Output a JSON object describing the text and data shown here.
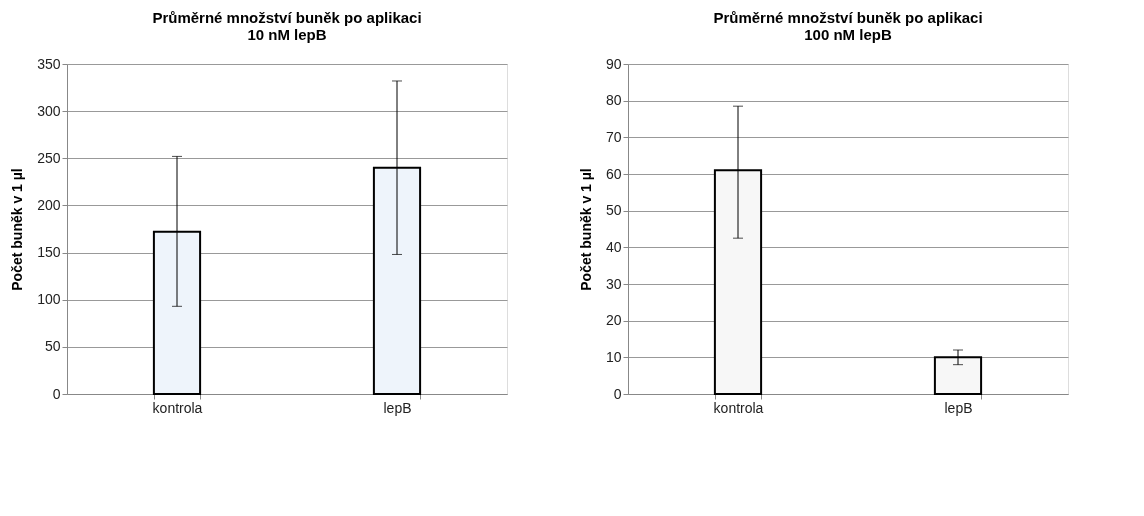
{
  "chart_data": [
    {
      "type": "bar",
      "title": "Průměrné množství buněk po aplikaci\n10 nM lepB",
      "ylabel": "Počet buněk v 1 µl",
      "categories": [
        "kontrola",
        "lepB"
      ],
      "values": [
        172,
        240
      ],
      "errors": [
        [
          93,
          252
        ],
        [
          148,
          332
        ]
      ],
      "color": "#eef4fb",
      "ylim": [
        0,
        350
      ],
      "yticks": [
        0,
        50,
        100,
        150,
        200,
        250,
        300,
        350
      ],
      "grid": "y"
    },
    {
      "type": "bar",
      "title": "Průměrné množství buněk po aplikaci\n100 nM lepB",
      "ylabel": "Počet buněk v 1 µl",
      "categories": [
        "kontrola",
        "lepB"
      ],
      "values": [
        61,
        10
      ],
      "errors": [
        [
          42.5,
          78.5
        ],
        [
          8,
          12
        ]
      ],
      "color": "#f7f7f7",
      "ylim": [
        0,
        90
      ],
      "yticks": [
        0,
        10,
        20,
        30,
        40,
        50,
        60,
        70,
        80,
        90
      ],
      "grid": "y"
    }
  ]
}
